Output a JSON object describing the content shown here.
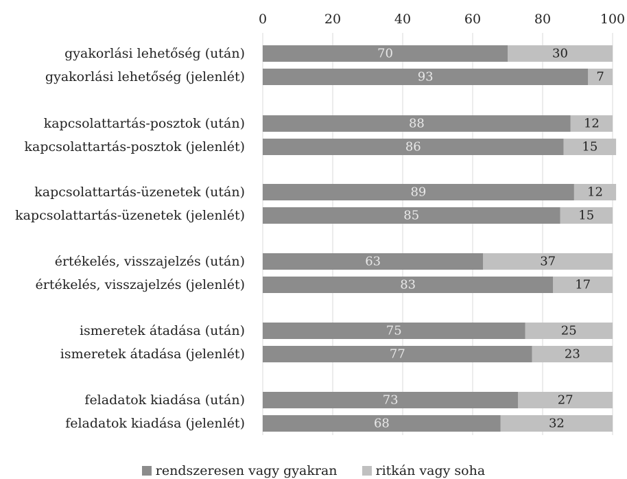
{
  "chart_data": {
    "type": "bar",
    "orientation": "horizontal",
    "stacked": true,
    "title": "",
    "xlabel": "",
    "ylabel": "",
    "xlim": [
      0,
      100
    ],
    "ticks": [
      0,
      20,
      40,
      60,
      80,
      100
    ],
    "tick_labels": [
      "0",
      "20",
      "40",
      "60",
      "80",
      "100"
    ],
    "grid": true,
    "legend_position": "bottom",
    "categories": [
      "gyakorlási lehetőség (után)",
      "gyakorlási lehetőség (jelenlét)",
      "kapcsolattartás-posztok (után)",
      "kapcsolattartás-posztok (jelenlét)",
      "kapcsolattartás-üzenetek (után)",
      "kapcsolattartás-üzenetek (jelenlét)",
      "értékelés, visszajelzés (után)",
      "értékelés, visszajelzés (jelenlét)",
      "ismeretek átadása (után)",
      "ismeretek átadása (jelenlét)",
      "feladatok kiadása (után)",
      "feladatok kiadása (jelenlét)"
    ],
    "series": [
      {
        "name": "rendszeresen vagy gyakran",
        "color": "#8c8c8c",
        "label_color": "#e8e8e8",
        "values": [
          70,
          93,
          88,
          86,
          89,
          85,
          63,
          83,
          75,
          77,
          73,
          68
        ]
      },
      {
        "name": "ritkán vagy soha",
        "color": "#c0c0c0",
        "label_color": "#222222",
        "values": [
          30,
          7,
          12,
          15,
          12,
          15,
          37,
          17,
          25,
          23,
          27,
          32
        ]
      }
    ]
  }
}
